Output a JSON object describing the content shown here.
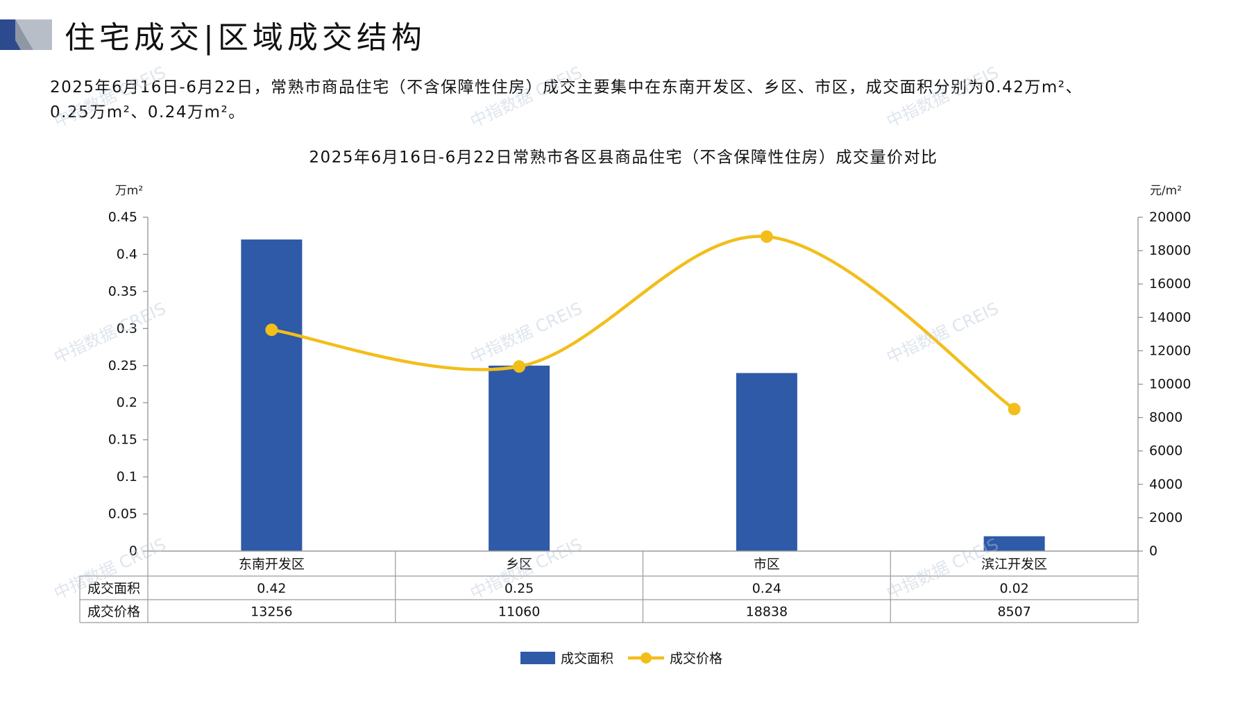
{
  "header": {
    "title": "住宅成交|区域成交结构"
  },
  "summary": {
    "line1": "2025年6月16日-6月22日，常熟市商品住宅（不含保障性住房）成交主要集中在东南开发区、乡区、市区，成交面积分别为0.42万m²、",
    "line2": "0.25万m²、0.24万m²。"
  },
  "watermark": "中指数据 CREIS",
  "colors": {
    "bar": "#2E5AA8",
    "line": "#F2BE1A",
    "axis": "#8a8a8a",
    "table_border": "#9a9a9a",
    "header_dark": "#2E4A8E",
    "header_grey": "#B8BEC8"
  },
  "chart_data": {
    "type": "bar",
    "title": "2025年6月16日-6月22日常熟市各区县商品住宅（不含保障性住房）成交量价对比",
    "categories": [
      "东南开发区",
      "乡区",
      "市区",
      "滨江开发区"
    ],
    "series": [
      {
        "name": "成交面积",
        "type": "bar",
        "axis": "left",
        "values": [
          0.42,
          0.25,
          0.24,
          0.02
        ]
      },
      {
        "name": "成交价格",
        "type": "line",
        "axis": "right",
        "smooth": true,
        "values": [
          13256,
          11060,
          18838,
          8507
        ]
      }
    ],
    "left_axis": {
      "unit": "万m²",
      "ylim": [
        0,
        0.45
      ],
      "ticks": [
        "0",
        "0.05",
        "0.1",
        "0.15",
        "0.2",
        "0.25",
        "0.3",
        "0.35",
        "0.4",
        "0.45"
      ]
    },
    "right_axis": {
      "unit": "元/m²",
      "ylim": [
        0,
        20000
      ],
      "ticks": [
        "0",
        "2000",
        "4000",
        "6000",
        "8000",
        "10000",
        "12000",
        "14000",
        "16000",
        "18000",
        "20000"
      ]
    },
    "table": {
      "rows": [
        {
          "label": "成交面积",
          "values": [
            "0.42",
            "0.25",
            "0.24",
            "0.02"
          ]
        },
        {
          "label": "成交价格",
          "values": [
            "13256",
            "11060",
            "18838",
            "8507"
          ]
        }
      ]
    },
    "legend": {
      "position": "bottom",
      "items": [
        "成交面积",
        "成交价格"
      ]
    }
  }
}
